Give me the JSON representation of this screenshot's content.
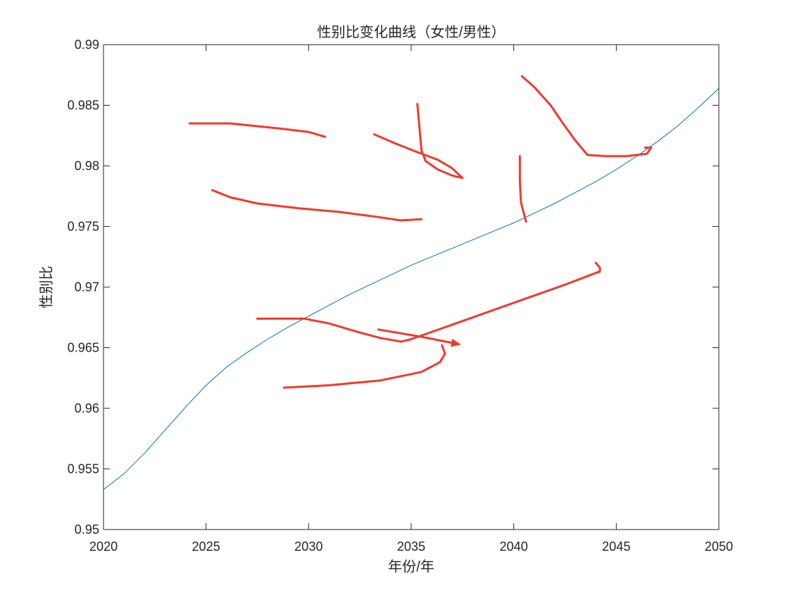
{
  "chart_data": {
    "type": "line",
    "title": "性别比变化曲线（女性/男性）",
    "xlabel": "年份/年",
    "ylabel": "性别比",
    "xlim": [
      2020,
      2050
    ],
    "ylim": [
      0.95,
      0.99
    ],
    "x_ticks": [
      "2020",
      "2025",
      "2030",
      "2035",
      "2040",
      "2045",
      "2050"
    ],
    "y_ticks": [
      "0.95",
      "0.955",
      "0.96",
      "0.965",
      "0.97",
      "0.975",
      "0.98",
      "0.985",
      "0.99"
    ],
    "grid": false,
    "series": [
      {
        "color": "#0072BD",
        "x": [
          2020,
          2021,
          2022,
          2023,
          2024,
          2025,
          2026,
          2027,
          2028,
          2029,
          2030,
          2031,
          2032,
          2033,
          2034,
          2035,
          2036,
          2037,
          2038,
          2039,
          2040,
          2041,
          2042,
          2043,
          2044,
          2045,
          2046,
          2047,
          2048,
          2049,
          2050
        ],
        "y": [
          0.9533,
          0.9546,
          0.9563,
          0.9582,
          0.9601,
          0.9619,
          0.9634,
          0.9646,
          0.9657,
          0.9667,
          0.9676,
          0.9685,
          0.9694,
          0.9702,
          0.971,
          0.9718,
          0.9725,
          0.9732,
          0.9739,
          0.9746,
          0.9753,
          0.9761,
          0.9769,
          0.9778,
          0.9787,
          0.9797,
          0.9808,
          0.982,
          0.9833,
          0.9848,
          0.9864
        ]
      }
    ],
    "annotations": {
      "type": "handwritten-scribbles",
      "color": "#EE3B30",
      "strokes": [
        {
          "x": [
            2024.2,
            2026.2,
            2028.5,
            2030.0,
            2030.8
          ],
          "y": [
            0.9835,
            0.9835,
            0.9831,
            0.9828,
            0.9824
          ]
        },
        {
          "x": [
            2025.3,
            2026.2,
            2027.5,
            2029.5,
            2031.5,
            2033.3,
            2034.5,
            2035.5
          ],
          "y": [
            0.978,
            0.9774,
            0.9769,
            0.9765,
            0.9762,
            0.9758,
            0.9755,
            0.9756
          ]
        },
        {
          "x": [
            2033.2,
            2034.3,
            2035.2,
            2036.3,
            2037.0,
            2037.5,
            2037.0,
            2036.3,
            2035.7,
            2035.5,
            2035.3
          ],
          "y": [
            0.9826,
            0.9818,
            0.9812,
            0.9805,
            0.9798,
            0.979,
            0.9792,
            0.9797,
            0.9804,
            0.9813,
            0.9851
          ]
        },
        {
          "x": [
            2040.4,
            2041.0,
            2041.8,
            2042.4,
            2043.0,
            2043.6,
            2044.5,
            2045.5,
            2046.5,
            2046.7,
            2046.4
          ],
          "y": [
            0.9874,
            0.9865,
            0.985,
            0.9835,
            0.9821,
            0.9809,
            0.9808,
            0.9808,
            0.981,
            0.9815,
            0.9815
          ]
        },
        {
          "x": [
            2040.3,
            2040.3,
            2040.35,
            2040.6
          ],
          "y": [
            0.9808,
            0.9788,
            0.977,
            0.9754
          ]
        },
        {
          "x": [
            2027.5,
            2029.8,
            2031.0,
            2032.4,
            2033.5,
            2034.5,
            2035.0,
            2037.5,
            2040.5,
            2042.5,
            2044.2,
            2044.2,
            2044.0
          ],
          "y": [
            0.9674,
            0.9674,
            0.967,
            0.9663,
            0.9658,
            0.9655,
            0.9657,
            0.9672,
            0.969,
            0.9702,
            0.9713,
            0.9716,
            0.972
          ]
        },
        {
          "x": [
            2033.4,
            2035.5,
            2037.3
          ],
          "y": [
            0.9665,
            0.9659,
            0.9653
          ]
        },
        {
          "x": [
            2028.8,
            2031.0,
            2033.5,
            2035.5,
            2036.4,
            2036.65,
            2036.5
          ],
          "y": [
            0.9617,
            0.9619,
            0.9623,
            0.963,
            0.9638,
            0.9645,
            0.9652
          ]
        }
      ]
    }
  }
}
